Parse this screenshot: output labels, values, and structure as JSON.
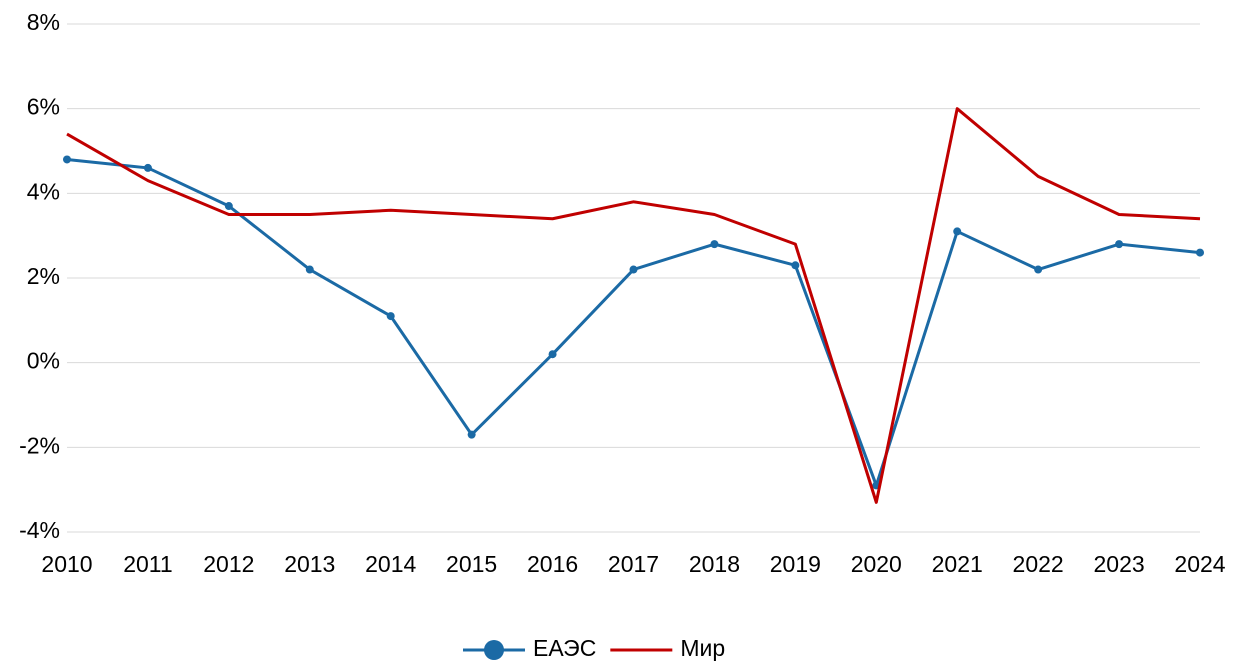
{
  "chart_data": {
    "type": "line",
    "x": [
      2010,
      2011,
      2012,
      2013,
      2014,
      2015,
      2016,
      2017,
      2018,
      2019,
      2020,
      2021,
      2022,
      2023,
      2024
    ],
    "xlim": [
      2010,
      2024
    ],
    "xticks": [
      2010,
      2011,
      2012,
      2013,
      2014,
      2015,
      2016,
      2017,
      2018,
      2019,
      2020,
      2021,
      2022,
      2023,
      2024
    ],
    "ylim": [
      -4,
      8
    ],
    "yticks": [
      {
        "value": -4,
        "label": "-4%"
      },
      {
        "value": -2,
        "label": "-2%"
      },
      {
        "value": 0,
        "label": "0%"
      },
      {
        "value": 2,
        "label": "2%"
      },
      {
        "value": 4,
        "label": "4%"
      },
      {
        "value": 6,
        "label": "6%"
      },
      {
        "value": 8,
        "label": "8%"
      }
    ],
    "grid": true,
    "legend": "bottom",
    "series": [
      {
        "name": "ЕАЭС",
        "color": "#1b6aa5",
        "marker": true,
        "values": [
          4.8,
          4.6,
          3.7,
          2.2,
          1.1,
          -1.7,
          0.2,
          2.2,
          2.8,
          2.3,
          -2.9,
          3.1,
          2.2,
          2.8,
          2.6
        ]
      },
      {
        "name": "Мир",
        "color": "#c00000",
        "marker": false,
        "values": [
          5.4,
          4.3,
          3.5,
          3.5,
          3.6,
          3.5,
          3.4,
          3.8,
          3.5,
          2.8,
          -3.3,
          6.0,
          4.4,
          3.5,
          3.4
        ]
      }
    ]
  }
}
